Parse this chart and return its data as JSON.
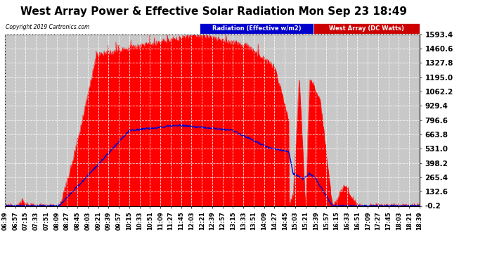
{
  "title": "West Array Power & Effective Solar Radiation Mon Sep 23 18:49",
  "copyright": "Copyright 2019 Cartronics.com",
  "legend_radiation": "Radiation (Effective w/m2)",
  "legend_west": "West Array (DC Watts)",
  "legend_radiation_bg": "#0000cc",
  "legend_west_bg": "#cc0000",
  "y_ticks": [
    -0.2,
    132.6,
    265.4,
    398.2,
    531.0,
    663.8,
    796.6,
    929.4,
    1062.2,
    1195.0,
    1327.8,
    1460.6,
    1593.4
  ],
  "ymin": -0.2,
  "ymax": 1593.4,
  "background_color": "#ffffff",
  "plot_bg": "#c8c8c8",
  "grid_color": "#ffffff",
  "radiation_color": "#ff0000",
  "radiation_fill": "#ff0000",
  "blue_line_color": "#0000cc",
  "title_fontsize": 11,
  "x_labels": [
    "06:39",
    "06:57",
    "07:15",
    "07:33",
    "07:51",
    "08:09",
    "08:27",
    "08:45",
    "09:03",
    "09:21",
    "09:39",
    "09:57",
    "10:15",
    "10:33",
    "10:51",
    "11:09",
    "11:27",
    "11:45",
    "12:03",
    "12:21",
    "12:39",
    "12:57",
    "13:15",
    "13:33",
    "13:51",
    "14:09",
    "14:27",
    "14:45",
    "15:03",
    "15:21",
    "15:39",
    "15:57",
    "16:15",
    "16:33",
    "16:51",
    "17:09",
    "17:27",
    "17:45",
    "18:03",
    "18:21",
    "18:39"
  ]
}
